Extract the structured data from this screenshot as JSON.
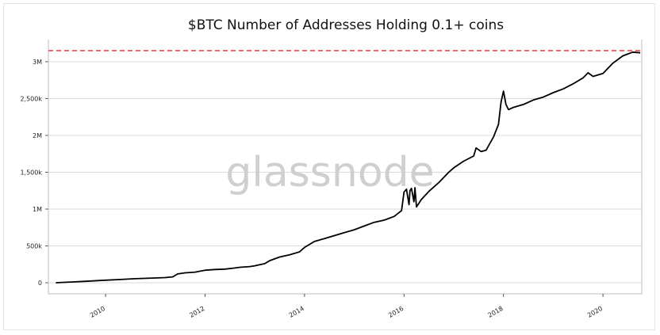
{
  "chart_data": {
    "type": "line",
    "title": "$BTC Number of Addresses Holding 0.1+ coins",
    "watermark": "glassnode",
    "xlabel": "",
    "ylabel": "",
    "xlim": [
      2008.85,
      2020.78
    ],
    "ylim": [
      -150000,
      3300000
    ],
    "grid": true,
    "yticks": [
      {
        "value": 0,
        "label": "0"
      },
      {
        "value": 500000,
        "label": "500k"
      },
      {
        "value": 1000000,
        "label": "1M"
      },
      {
        "value": 1500000,
        "label": "1,500k"
      },
      {
        "value": 2000000,
        "label": "2M"
      },
      {
        "value": 2500000,
        "label": "2,500k"
      },
      {
        "value": 3000000,
        "label": "3M"
      }
    ],
    "xticks": [
      {
        "value": 2010,
        "label": "2010"
      },
      {
        "value": 2012,
        "label": "2012"
      },
      {
        "value": 2014,
        "label": "2014"
      },
      {
        "value": 2016,
        "label": "2016"
      },
      {
        "value": 2018,
        "label": "2018"
      },
      {
        "value": 2020,
        "label": "2020"
      }
    ],
    "reference_line": {
      "value": 3150000,
      "color": "#e8282b",
      "style": "dashed"
    },
    "series": [
      {
        "color": "#000000",
        "x": [
          2009.0,
          2009.3,
          2009.6,
          2010.0,
          2010.3,
          2010.6,
          2011.0,
          2011.2,
          2011.35,
          2011.45,
          2011.6,
          2011.8,
          2012.0,
          2012.2,
          2012.4,
          2012.6,
          2012.7,
          2012.9,
          2013.0,
          2013.2,
          2013.3,
          2013.5,
          2013.7,
          2013.9,
          2014.0,
          2014.2,
          2014.4,
          2014.6,
          2014.8,
          2015.0,
          2015.2,
          2015.4,
          2015.6,
          2015.8,
          2015.95,
          2016.0,
          2016.05,
          2016.1,
          2016.12,
          2016.15,
          2016.2,
          2016.22,
          2016.25,
          2016.3,
          2016.35,
          2016.5,
          2016.7,
          2016.9,
          2017.0,
          2017.2,
          2017.4,
          2017.45,
          2017.55,
          2017.65,
          2017.7,
          2017.8,
          2017.9,
          2017.95,
          2018.0,
          2018.05,
          2018.1,
          2018.2,
          2018.4,
          2018.6,
          2018.8,
          2019.0,
          2019.2,
          2019.4,
          2019.6,
          2019.7,
          2019.8,
          2020.0,
          2020.2,
          2020.4,
          2020.6,
          2020.75
        ],
        "values": [
          0,
          10000,
          20000,
          35000,
          45000,
          55000,
          65000,
          70000,
          80000,
          120000,
          135000,
          145000,
          170000,
          180000,
          185000,
          200000,
          210000,
          220000,
          230000,
          260000,
          300000,
          350000,
          380000,
          420000,
          480000,
          560000,
          600000,
          640000,
          680000,
          720000,
          770000,
          820000,
          850000,
          900000,
          980000,
          1230000,
          1270000,
          1060000,
          1250000,
          1280000,
          1100000,
          1290000,
          1030000,
          1080000,
          1130000,
          1240000,
          1360000,
          1500000,
          1560000,
          1650000,
          1720000,
          1830000,
          1780000,
          1800000,
          1860000,
          1980000,
          2150000,
          2450000,
          2600000,
          2420000,
          2350000,
          2380000,
          2420000,
          2480000,
          2520000,
          2580000,
          2630000,
          2700000,
          2780000,
          2850000,
          2800000,
          2840000,
          2980000,
          3080000,
          3130000,
          3120000
        ]
      }
    ]
  }
}
